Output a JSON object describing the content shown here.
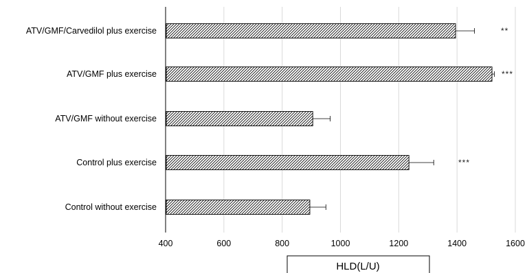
{
  "chart_data": {
    "type": "bar",
    "orientation": "horizontal",
    "categories": [
      "ATV/GMF/Carvedilol plus exercise",
      "ATV/GMF plus exercise",
      "ATV/GMF without exercise",
      "Control plus exercise",
      "Control without exercise"
    ],
    "values": [
      1395,
      1520,
      905,
      1235,
      895
    ],
    "errors": [
      65,
      8,
      60,
      85,
      55
    ],
    "significance": [
      "**",
      "***",
      "",
      "***",
      ""
    ],
    "xlabel": "HLD(L/U)",
    "xlim": [
      400,
      1600
    ],
    "xticks": [
      "400",
      "600",
      "800",
      "1000",
      "1200",
      "1400",
      "1600"
    ],
    "grid": "vertical",
    "bar_pattern": "diagonal-hatch",
    "colors": {
      "bar_outline": "#000000",
      "hatch": "#000000",
      "grid": "#d9d9d9"
    }
  }
}
